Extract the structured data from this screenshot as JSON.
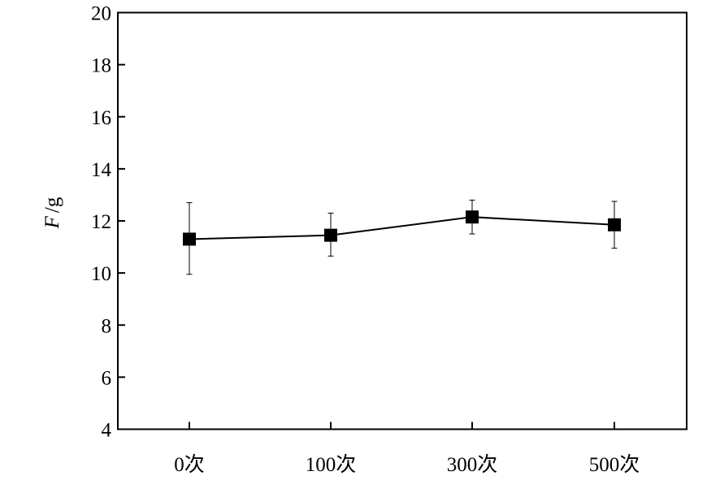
{
  "chart_data": {
    "type": "line",
    "ylabel_var": "F",
    "ylabel_unit": "/g",
    "categories": [
      "0次",
      "100次",
      "300次",
      "500次"
    ],
    "y_ticks": [
      "4",
      "6",
      "8",
      "10",
      "12",
      "14",
      "16",
      "18",
      "20"
    ],
    "ylim": [
      4,
      20
    ],
    "series": [
      {
        "values": [
          11.3,
          11.45,
          12.15,
          11.85
        ],
        "err_upper": [
          12.7,
          12.3,
          12.8,
          12.75
        ],
        "err_lower": [
          9.95,
          10.65,
          11.5,
          10.95
        ],
        "marker": "square"
      }
    ],
    "grid": false,
    "colors": {
      "line": "#000000",
      "marker": "#000000"
    }
  }
}
